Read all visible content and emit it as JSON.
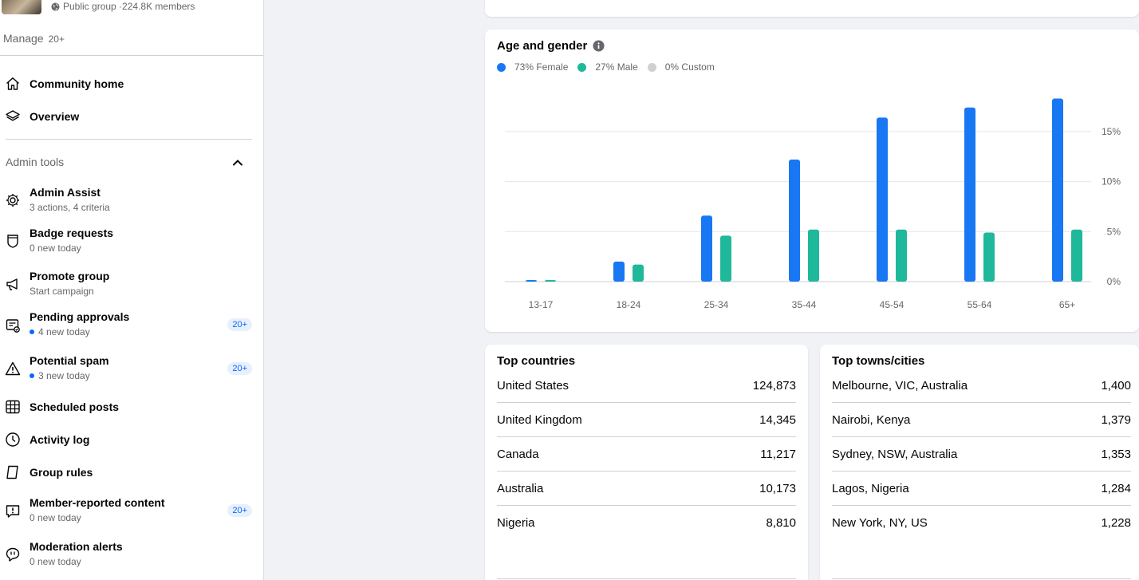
{
  "group": {
    "privacy_label": "Public group · ",
    "members": "224.8K members"
  },
  "manage": {
    "label": "Manage",
    "count": "20+"
  },
  "nav": {
    "community_home": "Community home",
    "overview": "Overview"
  },
  "admin_tools": {
    "heading": "Admin tools",
    "items": [
      {
        "title": "Admin Assist",
        "sub": "3 actions, 4 criteria",
        "icon": "gear-icon"
      },
      {
        "title": "Badge requests",
        "sub": "0 new today",
        "icon": "badge-icon"
      },
      {
        "title": "Promote group",
        "sub": "Start campaign",
        "icon": "megaphone-icon"
      },
      {
        "title": "Pending approvals",
        "sub": "4 new today",
        "icon": "approvals-icon",
        "badge": "20+",
        "dot": true
      },
      {
        "title": "Potential spam",
        "sub": "3 new today",
        "icon": "warning-icon",
        "badge": "20+",
        "dot": true
      },
      {
        "title": "Scheduled posts",
        "icon": "calendar-icon"
      },
      {
        "title": "Activity log",
        "icon": "clock-icon"
      },
      {
        "title": "Group rules",
        "icon": "rules-icon"
      },
      {
        "title": "Member-reported content",
        "sub": "0 new today",
        "icon": "report-icon",
        "badge": "20+"
      },
      {
        "title": "Moderation alerts",
        "sub": "0 new today",
        "icon": "alert-bubble-icon"
      }
    ]
  },
  "age_gender": {
    "title": "Age and gender",
    "legend": [
      {
        "label": "73% Female",
        "color": "#1877f2"
      },
      {
        "label": "27% Male",
        "color": "#1fb89a"
      },
      {
        "label": "0% Custom",
        "color": "#ced0d4"
      }
    ]
  },
  "chart_data": {
    "type": "bar",
    "categories": [
      "13-17",
      "18-24",
      "25-34",
      "35-44",
      "45-54",
      "55-64",
      "65+"
    ],
    "series": [
      {
        "name": "73% Female",
        "color": "#1877f2",
        "values": [
          0.1,
          2.0,
          6.6,
          12.2,
          16.4,
          17.4,
          18.3
        ]
      },
      {
        "name": "27% Male",
        "color": "#1fb89a",
        "values": [
          0.1,
          1.7,
          4.6,
          5.2,
          5.2,
          4.9,
          5.2
        ]
      }
    ],
    "yticks": [
      "0%",
      "5%",
      "10%",
      "15%"
    ],
    "ytick_values": [
      0,
      5,
      10,
      15
    ],
    "ylim": [
      0,
      18.5
    ],
    "grid": true,
    "legend_position": "top-left"
  },
  "top_countries": {
    "title": "Top countries",
    "rows": [
      {
        "name": "United States",
        "value": "124,873"
      },
      {
        "name": "United Kingdom",
        "value": "14,345"
      },
      {
        "name": "Canada",
        "value": "11,217"
      },
      {
        "name": "Australia",
        "value": "10,173"
      },
      {
        "name": "Nigeria",
        "value": "8,810"
      }
    ]
  },
  "top_cities": {
    "title": "Top towns/cities",
    "rows": [
      {
        "name": "Melbourne, VIC, Australia",
        "value": "1,400"
      },
      {
        "name": "Nairobi, Kenya",
        "value": "1,379"
      },
      {
        "name": "Sydney, NSW, Australia",
        "value": "1,353"
      },
      {
        "name": "Lagos, Nigeria",
        "value": "1,284"
      },
      {
        "name": "New York, NY, US",
        "value": "1,228"
      }
    ]
  }
}
